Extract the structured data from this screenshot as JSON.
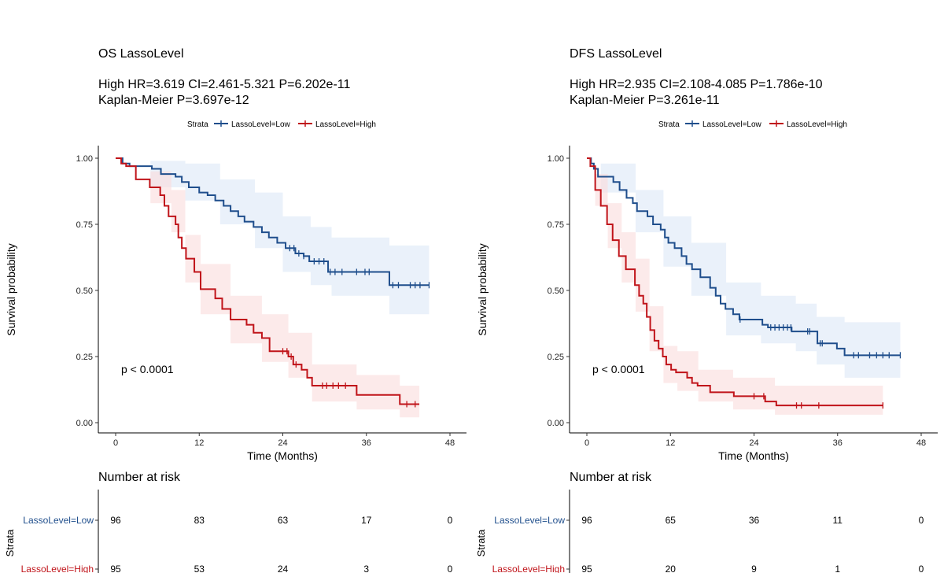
{
  "colors": {
    "low": "#1f4e8c",
    "high": "#c0141a",
    "low_ci": "#dce8f6",
    "high_ci": "#fadcdc"
  },
  "chart_data": [
    {
      "type": "line",
      "subtype": "kaplan-meier step",
      "title": "OS LassoLevel",
      "subtitle_lines": [
        "High HR=3.619 CI=2.461-5.321 P=6.202e-11",
        "Kaplan-Meier P=3.697e-12"
      ],
      "legend_title": "Strata",
      "legend_placement": "top",
      "xlabel": "Time (Months)",
      "ylabel": "Survival probability",
      "xlim": [
        0,
        48
      ],
      "ylim": [
        0,
        1
      ],
      "xticks": [
        "0",
        "12",
        "24",
        "36",
        "48"
      ],
      "yticks": [
        "0.00",
        "0.25",
        "0.50",
        "0.75",
        "1.00"
      ],
      "annotation": "p < 0.0001",
      "series": [
        {
          "name": "LassoLevel=Low",
          "color_key": "low",
          "steps": [
            [
              0,
              1
            ],
            [
              1,
              0.98
            ],
            [
              2,
              0.97
            ],
            [
              5.2,
              0.96
            ],
            [
              6.5,
              0.94
            ],
            [
              8.6,
              0.93
            ],
            [
              9.5,
              0.91
            ],
            [
              10.5,
              0.89
            ],
            [
              12,
              0.87
            ],
            [
              13.2,
              0.86
            ],
            [
              14.3,
              0.84
            ],
            [
              15.5,
              0.82
            ],
            [
              16.5,
              0.8
            ],
            [
              17.6,
              0.78
            ],
            [
              18.5,
              0.76
            ],
            [
              19.8,
              0.74
            ],
            [
              21,
              0.72
            ],
            [
              22,
              0.7
            ],
            [
              23.2,
              0.68
            ],
            [
              24.4,
              0.66
            ],
            [
              25.8,
              0.64
            ],
            [
              27,
              0.63
            ],
            [
              27.8,
              0.61
            ],
            [
              30.5,
              0.57
            ],
            [
              39.3,
              0.52
            ],
            [
              45,
              0.52
            ]
          ],
          "ci": [
            [
              0,
              1,
              1
            ],
            [
              5,
              0.89,
              0.99
            ],
            [
              10,
              0.84,
              0.98
            ],
            [
              15,
              0.75,
              0.92
            ],
            [
              20,
              0.66,
              0.87
            ],
            [
              24,
              0.57,
              0.78
            ],
            [
              28,
              0.52,
              0.74
            ],
            [
              31,
              0.48,
              0.7
            ],
            [
              39.3,
              0.41,
              0.67
            ],
            [
              45,
              0.41,
              0.67
            ]
          ],
          "censor": [
            25,
            25.6,
            26.3,
            27,
            28.5,
            29.2,
            29.9,
            30.8,
            31.5,
            32.5,
            34.6,
            35.8,
            36.4,
            39.8,
            40.6,
            42.3,
            43,
            43.7,
            45
          ]
        },
        {
          "name": "LassoLevel=High",
          "color_key": "high",
          "steps": [
            [
              0,
              1
            ],
            [
              0.8,
              0.98
            ],
            [
              1.5,
              0.97
            ],
            [
              2.9,
              0.92
            ],
            [
              4.9,
              0.89
            ],
            [
              6.4,
              0.86
            ],
            [
              7,
              0.82
            ],
            [
              7.6,
              0.78
            ],
            [
              8.6,
              0.75
            ],
            [
              9,
              0.7
            ],
            [
              9.5,
              0.66
            ],
            [
              10.1,
              0.62
            ],
            [
              11.3,
              0.57
            ],
            [
              12.2,
              0.505
            ],
            [
              14.3,
              0.47
            ],
            [
              15.3,
              0.43
            ],
            [
              16.5,
              0.39
            ],
            [
              18.8,
              0.37
            ],
            [
              19.8,
              0.34
            ],
            [
              21,
              0.32
            ],
            [
              22.1,
              0.27
            ],
            [
              24.8,
              0.25
            ],
            [
              25.5,
              0.22
            ],
            [
              26.7,
              0.2
            ],
            [
              27.5,
              0.17
            ],
            [
              28.2,
              0.14
            ],
            [
              34.6,
              0.105
            ],
            [
              40.8,
              0.07
            ],
            [
              43.6,
              0.07
            ]
          ],
          "ci": [
            [
              0,
              1,
              1
            ],
            [
              5,
              0.83,
              0.95
            ],
            [
              8,
              0.72,
              0.88
            ],
            [
              10,
              0.53,
              0.71
            ],
            [
              12.2,
              0.41,
              0.6
            ],
            [
              16.5,
              0.3,
              0.48
            ],
            [
              21,
              0.23,
              0.41
            ],
            [
              24.8,
              0.17,
              0.34
            ],
            [
              28.2,
              0.08,
              0.22
            ],
            [
              34.6,
              0.05,
              0.18
            ],
            [
              40.8,
              0.02,
              0.14
            ],
            [
              43.6,
              0.02,
              0.14
            ]
          ],
          "censor": [
            24,
            24.6,
            25.2,
            25.9,
            29.7,
            30.3,
            31.2,
            32,
            33,
            41.8,
            43
          ]
        }
      ],
      "risk_table": {
        "title": "Number at risk",
        "ylabel": "Strata",
        "times": [
          0,
          12,
          24,
          36,
          48
        ],
        "rows": [
          {
            "label": "LassoLevel=Low",
            "color_key": "low",
            "values": [
              "96",
              "83",
              "63",
              "17",
              "0"
            ]
          },
          {
            "label": "LassoLevel=High",
            "color_key": "high",
            "values": [
              "95",
              "53",
              "24",
              "3",
              "0"
            ]
          }
        ]
      }
    },
    {
      "type": "line",
      "subtype": "kaplan-meier step",
      "title": "DFS LassoLevel",
      "subtitle_lines": [
        "High HR=2.935 CI=2.108-4.085 P=1.786e-10",
        "Kaplan-Meier P=3.261e-11"
      ],
      "legend_title": "Strata",
      "legend_placement": "top",
      "xlabel": "Time (Months)",
      "ylabel": "Survival probability",
      "xlim": [
        0,
        48
      ],
      "ylim": [
        0,
        1
      ],
      "xticks": [
        "0",
        "12",
        "24",
        "36",
        "48"
      ],
      "yticks": [
        "0.00",
        "0.25",
        "0.50",
        "0.75",
        "1.00"
      ],
      "annotation": "p < 0.0001",
      "series": [
        {
          "name": "LassoLevel=Low",
          "color_key": "low",
          "steps": [
            [
              0,
              1
            ],
            [
              0.6,
              0.98
            ],
            [
              1,
              0.96
            ],
            [
              1.6,
              0.93
            ],
            [
              3.8,
              0.91
            ],
            [
              4.7,
              0.88
            ],
            [
              5.7,
              0.85
            ],
            [
              6.6,
              0.83
            ],
            [
              7.2,
              0.8
            ],
            [
              8.7,
              0.78
            ],
            [
              9.5,
              0.75
            ],
            [
              10.6,
              0.73
            ],
            [
              11.2,
              0.7
            ],
            [
              11.7,
              0.68
            ],
            [
              12.6,
              0.66
            ],
            [
              13.6,
              0.63
            ],
            [
              14.3,
              0.6
            ],
            [
              15.1,
              0.58
            ],
            [
              16.3,
              0.55
            ],
            [
              17.7,
              0.51
            ],
            [
              18.5,
              0.48
            ],
            [
              19.2,
              0.45
            ],
            [
              19.9,
              0.43
            ],
            [
              21,
              0.41
            ],
            [
              21.9,
              0.39
            ],
            [
              25.2,
              0.37
            ],
            [
              26,
              0.36
            ],
            [
              29.4,
              0.345
            ],
            [
              33.1,
              0.3
            ],
            [
              35.9,
              0.28
            ],
            [
              37,
              0.255
            ],
            [
              45,
              0.255
            ]
          ],
          "ci": [
            [
              0,
              1,
              1
            ],
            [
              2,
              0.87,
              0.98
            ],
            [
              7,
              0.72,
              0.88
            ],
            [
              11,
              0.59,
              0.78
            ],
            [
              15,
              0.48,
              0.68
            ],
            [
              20,
              0.33,
              0.53
            ],
            [
              25,
              0.3,
              0.48
            ],
            [
              30,
              0.27,
              0.45
            ],
            [
              33,
              0.22,
              0.4
            ],
            [
              37,
              0.17,
              0.38
            ],
            [
              45,
              0.17,
              0.38
            ]
          ],
          "censor": [
            22,
            26.4,
            27,
            27.6,
            28.2,
            28.8,
            29.3,
            31.7,
            32,
            33.5,
            33.8,
            38.3,
            39,
            40.6,
            41.6,
            42.5,
            43.4,
            45
          ]
        },
        {
          "name": "LassoLevel=High",
          "color_key": "high",
          "steps": [
            [
              0,
              1
            ],
            [
              0.5,
              0.97
            ],
            [
              1.2,
              0.88
            ],
            [
              2,
              0.82
            ],
            [
              2.9,
              0.75
            ],
            [
              3.7,
              0.69
            ],
            [
              4.6,
              0.63
            ],
            [
              5.6,
              0.58
            ],
            [
              6.9,
              0.52
            ],
            [
              7.5,
              0.48
            ],
            [
              8.1,
              0.45
            ],
            [
              8.6,
              0.4
            ],
            [
              9.1,
              0.35
            ],
            [
              9.7,
              0.31
            ],
            [
              10.3,
              0.28
            ],
            [
              10.9,
              0.25
            ],
            [
              11.4,
              0.22
            ],
            [
              12.1,
              0.2
            ],
            [
              12.8,
              0.19
            ],
            [
              14.4,
              0.17
            ],
            [
              15.1,
              0.15
            ],
            [
              15.9,
              0.14
            ],
            [
              17.7,
              0.115
            ],
            [
              21.1,
              0.1
            ],
            [
              25.6,
              0.08
            ],
            [
              27.2,
              0.065
            ],
            [
              42.5,
              0.065
            ]
          ],
          "ci": [
            [
              0,
              1,
              1
            ],
            [
              1.2,
              0.82,
              0.94
            ],
            [
              3,
              0.66,
              0.83
            ],
            [
              5,
              0.53,
              0.72
            ],
            [
              7,
              0.42,
              0.62
            ],
            [
              9,
              0.27,
              0.44
            ],
            [
              11,
              0.15,
              0.29
            ],
            [
              13,
              0.12,
              0.27
            ],
            [
              16,
              0.08,
              0.2
            ],
            [
              21,
              0.05,
              0.17
            ],
            [
              27,
              0.03,
              0.14
            ],
            [
              42.5,
              0.03,
              0.14
            ]
          ],
          "censor": [
            24,
            25.4,
            30.1,
            30.8,
            33.3,
            42.5
          ]
        }
      ],
      "risk_table": {
        "title": "Number at risk",
        "ylabel": "Strata",
        "times": [
          0,
          12,
          24,
          36,
          48
        ],
        "rows": [
          {
            "label": "LassoLevel=Low",
            "color_key": "low",
            "values": [
              "96",
              "65",
              "36",
              "11",
              "0"
            ]
          },
          {
            "label": "LassoLevel=High",
            "color_key": "high",
            "values": [
              "95",
              "20",
              "9",
              "1",
              "0"
            ]
          }
        ]
      }
    }
  ]
}
